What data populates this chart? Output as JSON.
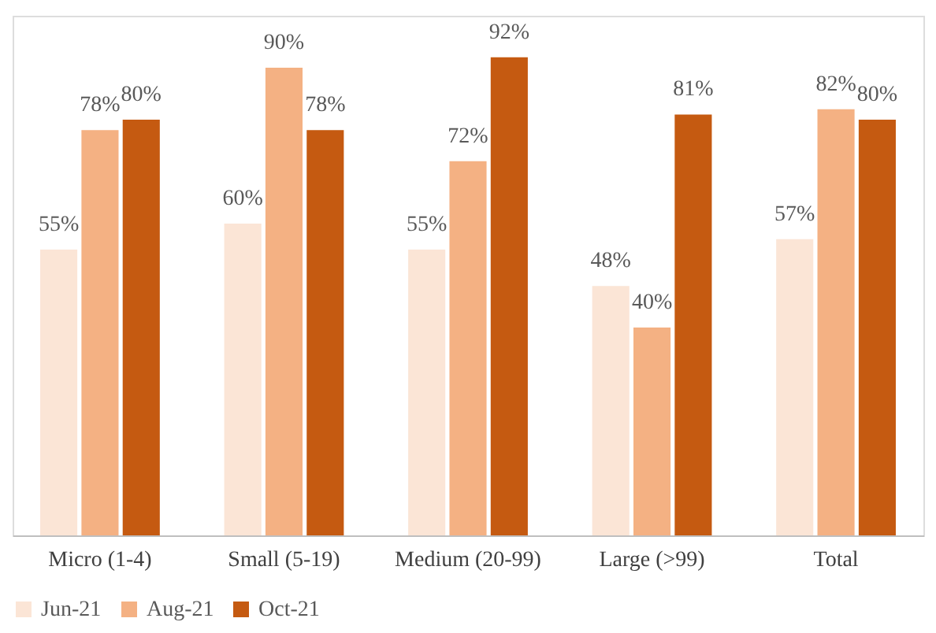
{
  "chart_data": {
    "type": "bar",
    "categories": [
      "Micro (1-4)",
      "Small (5-19)",
      "Medium (20-99)",
      "Large (>99)",
      "Total"
    ],
    "series": [
      {
        "name": "Jun-21",
        "color": "#fbe5d6",
        "values": [
          55,
          60,
          55,
          48,
          57
        ],
        "value_labels": [
          "55%",
          "60%",
          "55%",
          "48%",
          "57%"
        ]
      },
      {
        "name": "Aug-21",
        "color": "#f4b183",
        "values": [
          78,
          90,
          72,
          40,
          82
        ],
        "value_labels": [
          "78%",
          "90%",
          "72%",
          "40%",
          "82%"
        ]
      },
      {
        "name": "Oct-21",
        "color": "#c55a11",
        "values": [
          80,
          78,
          92,
          81,
          80
        ],
        "value_labels": [
          "80%",
          "78%",
          "92%",
          "81%",
          "80%"
        ]
      }
    ],
    "legend": "bottom",
    "grid": false
  }
}
